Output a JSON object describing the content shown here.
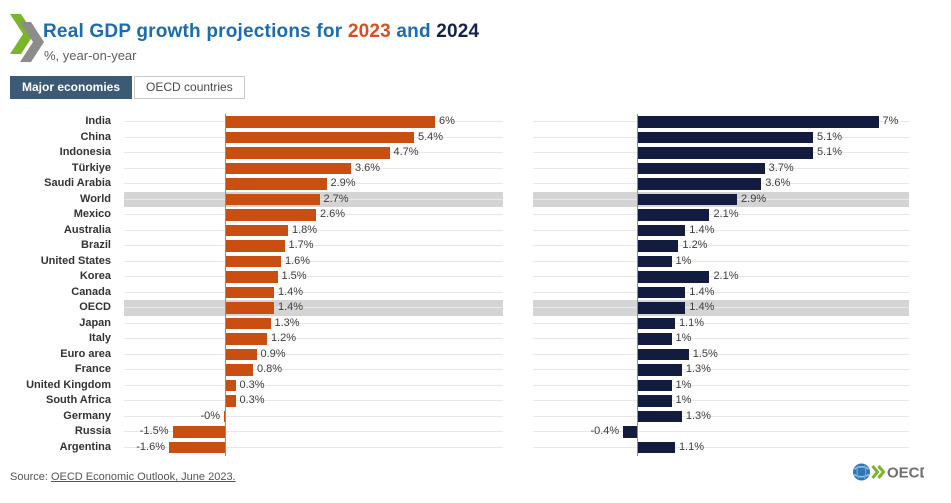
{
  "header": {
    "title_prefix": "Real GDP growth projections for ",
    "year_2023": "2023",
    "title_and": " and ",
    "year_2024": "2024",
    "subtitle": "%, year-on-year",
    "title_color": "#1b6cb0",
    "year_2023_color": "#d5521f",
    "year_2024_color": "#15224c"
  },
  "tabs": [
    {
      "label": "Major economies",
      "active": true
    },
    {
      "label": "OECD countries",
      "active": false
    }
  ],
  "chart_data": {
    "type": "bar",
    "orientation": "horizontal",
    "title": "Real GDP growth projections for 2023 and 2024",
    "unit": "%, year-on-year",
    "categories": [
      "India",
      "China",
      "Indonesia",
      "Türkiye",
      "Saudi Arabia",
      "World",
      "Mexico",
      "Australia",
      "Brazil",
      "United States",
      "Korea",
      "Canada",
      "OECD",
      "Japan",
      "Italy",
      "Euro area",
      "France",
      "United Kingdom",
      "South Africa",
      "Germany",
      "Russia",
      "Argentina"
    ],
    "series": [
      {
        "name": "2023",
        "color": "#c94e12",
        "values": [
          6,
          5.4,
          4.7,
          3.6,
          2.9,
          2.7,
          2.6,
          1.8,
          1.7,
          1.6,
          1.5,
          1.4,
          1.4,
          1.3,
          1.2,
          0.9,
          0.8,
          0.3,
          0.3,
          0,
          -1.5,
          -1.6
        ],
        "labels": [
          "6%",
          "5.4%",
          "4.7%",
          "3.6%",
          "2.9%",
          "2.7%",
          "2.6%",
          "1.8%",
          "1.7%",
          "1.6%",
          "1.5%",
          "1.4%",
          "1.4%",
          "1.3%",
          "1.2%",
          "0.9%",
          "0.8%",
          "0.3%",
          "0.3%",
          "-0%",
          "-1.5%",
          "-1.6%"
        ]
      },
      {
        "name": "2024",
        "color": "#131c3e",
        "values": [
          7,
          5.1,
          5.1,
          3.7,
          3.6,
          2.9,
          2.1,
          1.4,
          1.2,
          1,
          2.1,
          1.4,
          1.4,
          1.1,
          1,
          1.5,
          1.3,
          1,
          1,
          1.3,
          -0.4,
          1.1
        ],
        "labels": [
          "7%",
          "5.1%",
          "5.1%",
          "3.7%",
          "3.6%",
          "2.9%",
          "2.1%",
          "1.4%",
          "1.2%",
          "1%",
          "2.1%",
          "1.4%",
          "1.4%",
          "1.1%",
          "1%",
          "1.5%",
          "1.3%",
          "1%",
          "1%",
          "1.3%",
          "-0.4%",
          "1.1%"
        ]
      }
    ],
    "highlighted_categories": [
      "World",
      "OECD"
    ],
    "highlight_color": "#d4d4d4",
    "grid": "row-lines",
    "legend_position": "none",
    "xlim": [
      -3,
      8
    ]
  },
  "footer": {
    "source_prefix": "Source: ",
    "source_link": "OECD Economic Outlook, June 2023.",
    "logo_text": "OECD"
  }
}
